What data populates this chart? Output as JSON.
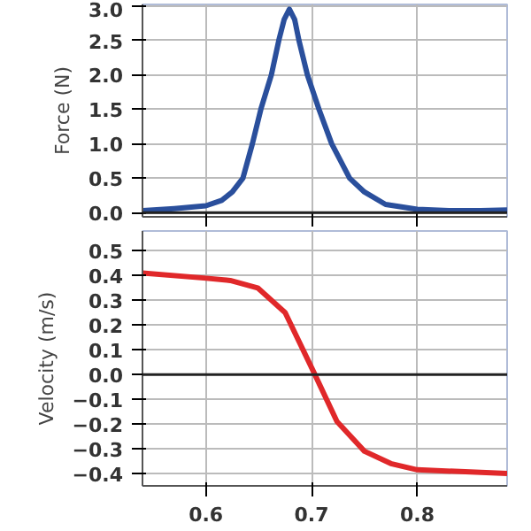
{
  "chart_data": [
    {
      "type": "line",
      "ylabel": "Force (N)",
      "xlim": [
        0.54,
        0.885
      ],
      "ylim": [
        -0.06,
        3.02
      ],
      "xticks": [
        0.6,
        0.7,
        0.8
      ],
      "yticks": [
        {
          "value": 0.0,
          "label": "0.0"
        },
        {
          "value": 0.5,
          "label": "0.5"
        },
        {
          "value": 1.0,
          "label": "1.0"
        },
        {
          "value": 1.5,
          "label": "1.5"
        },
        {
          "value": 2.0,
          "label": "2.0"
        },
        {
          "value": 2.5,
          "label": "2.5"
        },
        {
          "value": 3.0,
          "label": "3.0"
        }
      ],
      "tick_labels": "y",
      "grid": true,
      "ref_lines": [
        {
          "axis": "y",
          "value": 0,
          "color": "#222222"
        }
      ],
      "series": [
        {
          "color": "#2a4f9c",
          "x": [
            0.54,
            0.57,
            0.6,
            0.615,
            0.625,
            0.635,
            0.644,
            0.652,
            0.662,
            0.669,
            0.674,
            0.679,
            0.684,
            0.688,
            0.696,
            0.707,
            0.719,
            0.736,
            0.75,
            0.77,
            0.8,
            0.83,
            0.86,
            0.885
          ],
          "values": [
            0.03,
            0.06,
            0.1,
            0.18,
            0.3,
            0.5,
            1.0,
            1.5,
            2.0,
            2.5,
            2.8,
            2.95,
            2.8,
            2.5,
            2.0,
            1.5,
            1.0,
            0.5,
            0.3,
            0.12,
            0.05,
            0.03,
            0.03,
            0.04
          ]
        }
      ]
    },
    {
      "type": "line",
      "ylabel": "Velocity (m/s)",
      "xlim": [
        0.54,
        0.885
      ],
      "ylim": [
        -0.45,
        0.58
      ],
      "xticks": [
        0.6,
        0.7,
        0.8
      ],
      "yticks": [
        0.5,
        0.4,
        0.3,
        0.2,
        0.1,
        {
          "value": 0.0,
          "label": "0.0"
        },
        -0.1,
        -0.2,
        -0.3,
        -0.4
      ],
      "grid": true,
      "ref_lines": [
        {
          "axis": "y",
          "value": 0,
          "color": "#222222"
        }
      ],
      "series": [
        {
          "color": "#e0282a",
          "x": [
            0.54,
            0.598,
            0.623,
            0.649,
            0.675,
            0.702,
            0.724,
            0.75,
            0.775,
            0.8,
            0.885
          ],
          "values": [
            0.41,
            0.39,
            0.38,
            0.35,
            0.25,
            0.01,
            -0.19,
            -0.31,
            -0.36,
            -0.385,
            -0.4
          ]
        }
      ]
    }
  ]
}
